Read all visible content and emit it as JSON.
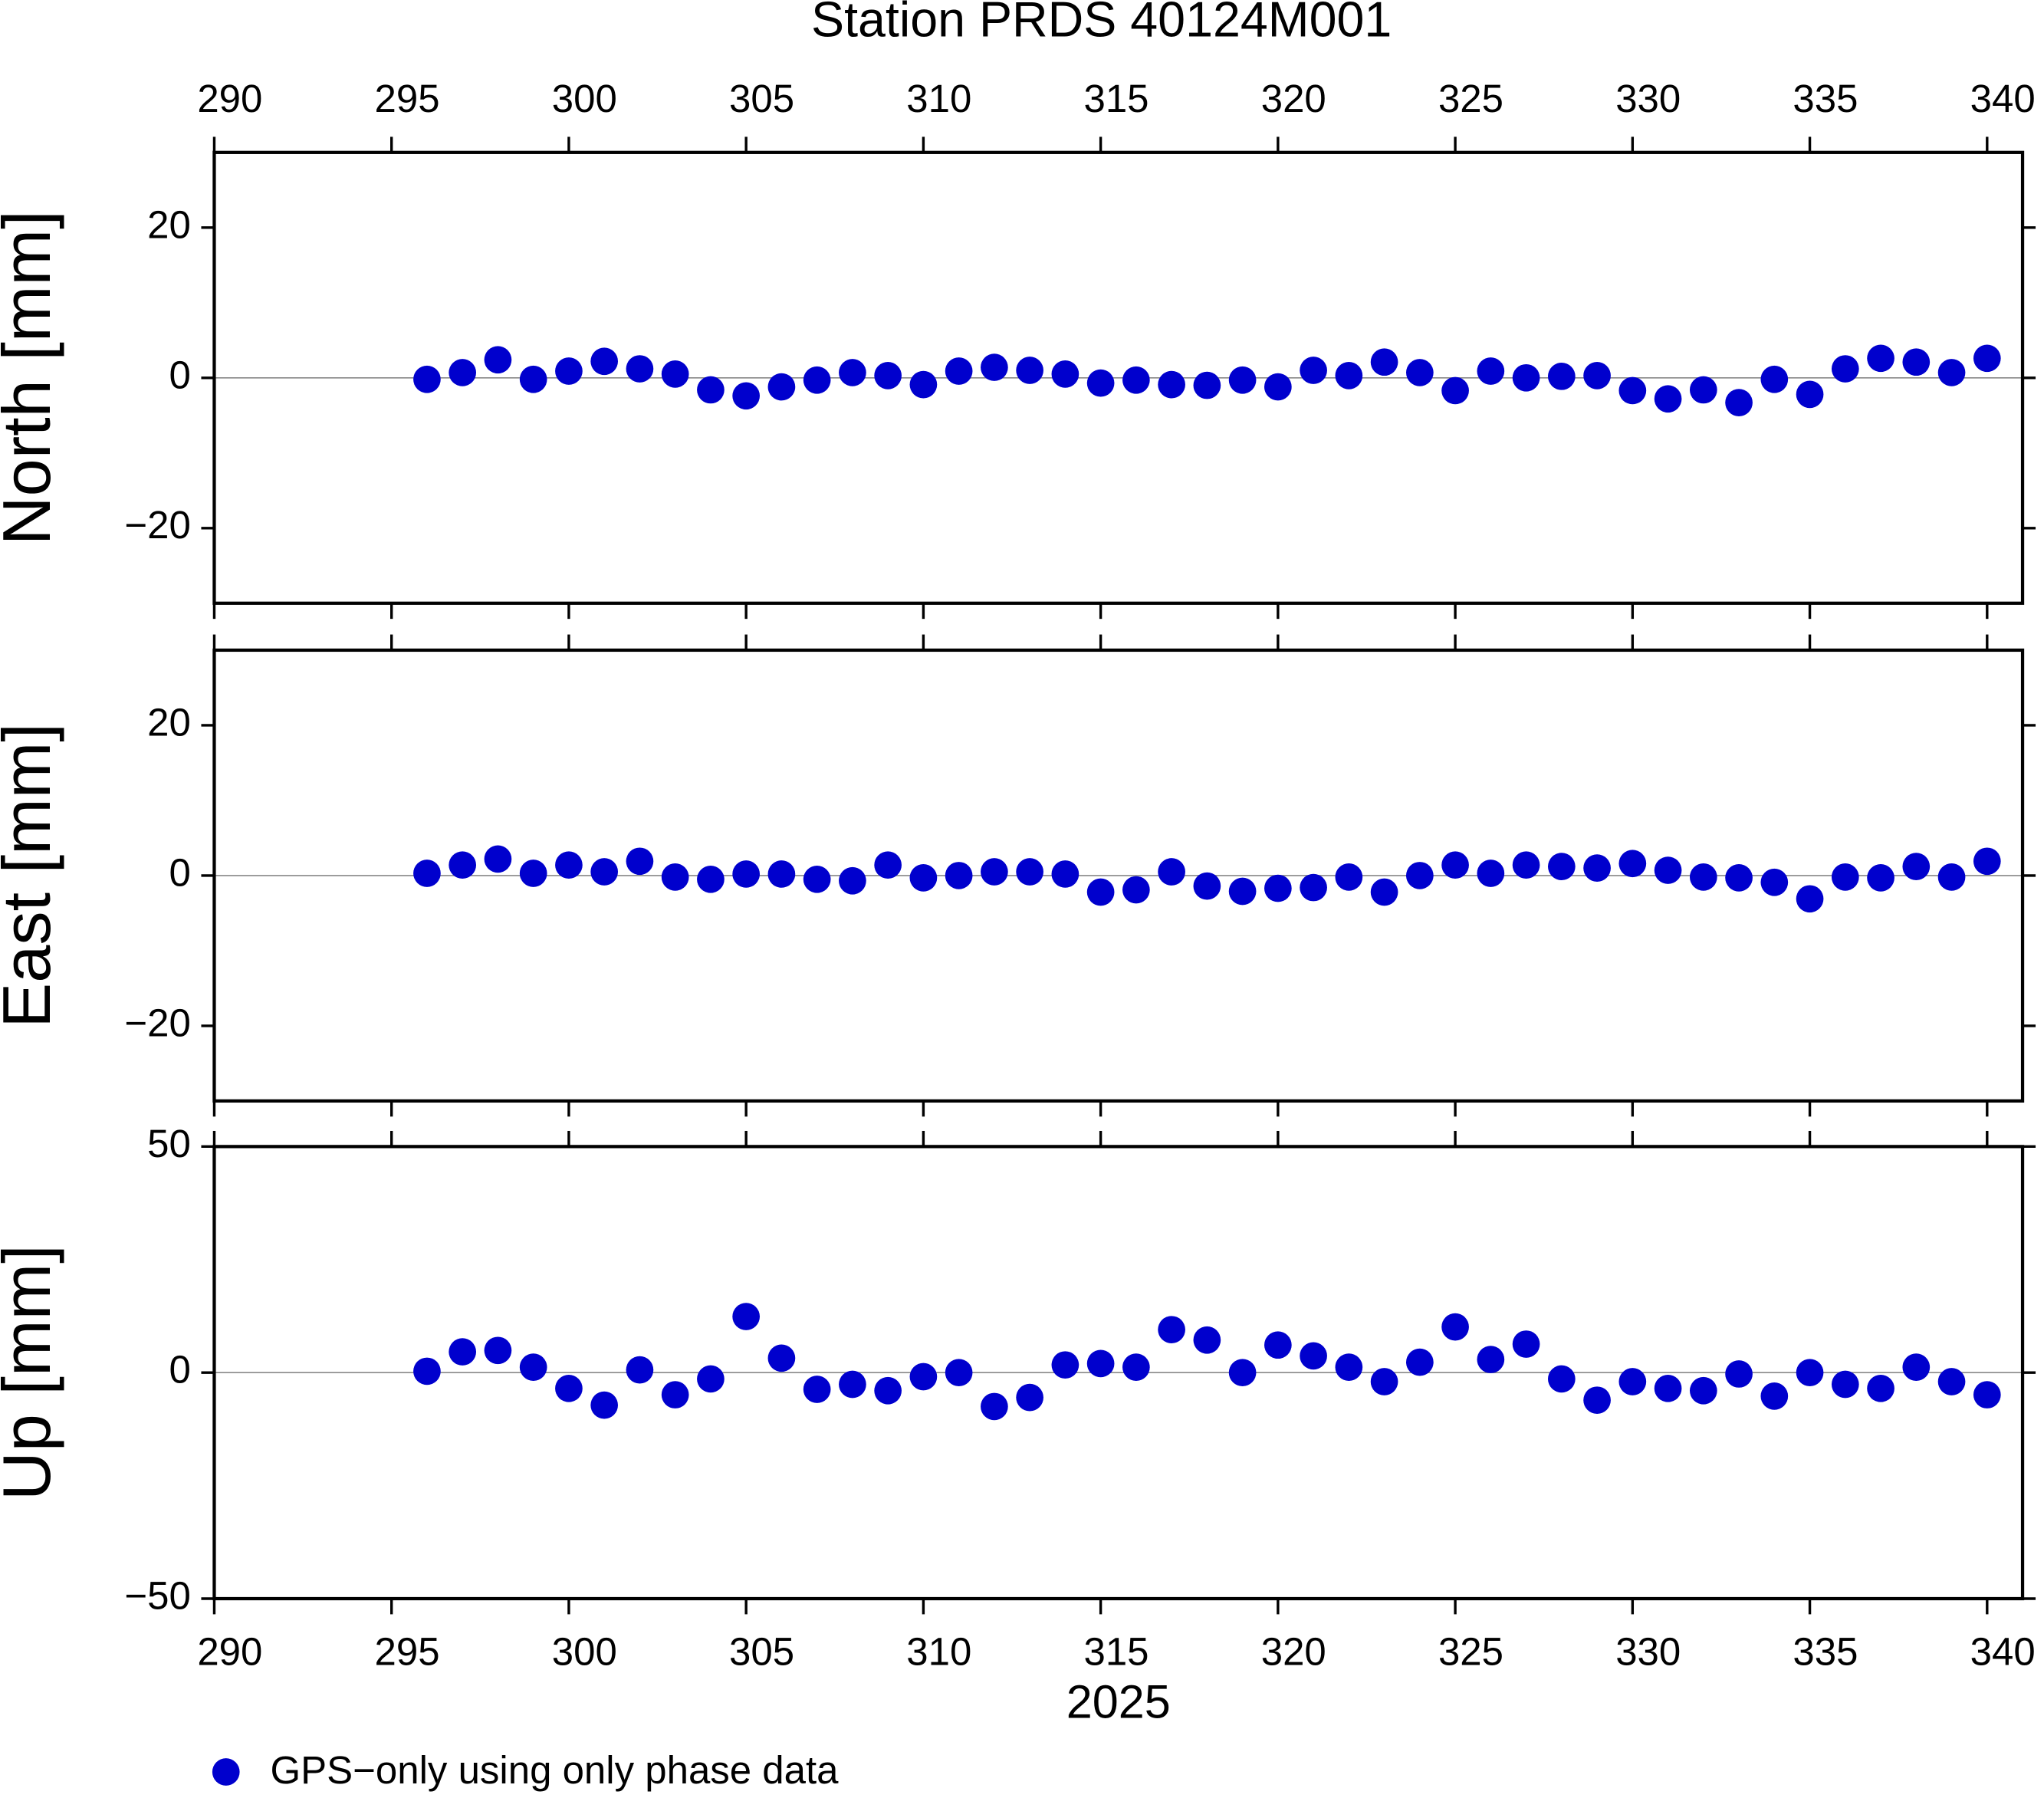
{
  "chart_data": [
    {
      "type": "scatter",
      "title": "Station PRDS 40124M001",
      "ylabel": "North [mm]",
      "x": [
        296,
        297,
        298,
        299,
        300,
        301,
        302,
        303,
        304,
        305,
        306,
        307,
        308,
        309,
        310,
        311,
        312,
        313,
        314,
        315,
        316,
        317,
        318,
        319,
        320,
        321,
        322,
        323,
        324,
        325,
        326,
        327,
        328,
        329,
        330,
        331,
        332,
        333,
        334,
        335,
        336,
        337,
        338,
        339,
        340
      ],
      "series": [
        {
          "color": "#0000cd",
          "values": [
            -0.2,
            0.7,
            2.4,
            -0.2,
            0.9,
            2.2,
            1.2,
            0.5,
            -1.6,
            -2.4,
            -1.2,
            -0.3,
            0.7,
            0.3,
            -0.9,
            0.9,
            1.4,
            1.0,
            0.5,
            -0.7,
            -0.3,
            -0.9,
            -1.0,
            -0.3,
            -1.2,
            1.0,
            0.3,
            2.1,
            0.7,
            -1.7,
            0.9,
            0,
            0.2,
            0.3,
            -1.7,
            -2.8,
            -1.6,
            -3.3,
            -0.2,
            -2.2,
            1.2,
            2.6,
            2.1,
            0.7,
            2.6
          ]
        }
      ],
      "xlim": [
        290,
        341
      ],
      "xticks": [
        290,
        295,
        300,
        305,
        310,
        315,
        320,
        325,
        330,
        335,
        340
      ],
      "ylim": [
        -30,
        30
      ],
      "yticks": [
        {
          "value": -20,
          "label": "−20"
        },
        0,
        20
      ]
    },
    {
      "type": "scatter",
      "ylabel": "East [mm]",
      "x": [
        296,
        297,
        298,
        299,
        300,
        301,
        302,
        303,
        304,
        305,
        306,
        307,
        308,
        309,
        310,
        311,
        312,
        313,
        314,
        315,
        316,
        317,
        318,
        319,
        320,
        321,
        322,
        323,
        324,
        325,
        326,
        327,
        328,
        329,
        330,
        331,
        332,
        333,
        334,
        335,
        336,
        337,
        338,
        339,
        340
      ],
      "series": [
        {
          "color": "#0000cd",
          "values": [
            0.3,
            1.4,
            2.2,
            0.3,
            1.4,
            0.5,
            1.9,
            -0.2,
            -0.5,
            0.2,
            0.2,
            -0.5,
            -0.7,
            1.4,
            -0.3,
            0,
            0.5,
            0.5,
            0.2,
            -2.2,
            -1.9,
            0.5,
            -1.4,
            -2.1,
            -1.7,
            -1.6,
            -0.2,
            -2.2,
            0,
            1.4,
            0.3,
            1.4,
            1.2,
            1.0,
            1.6,
            0.7,
            -0.2,
            -0.3,
            -0.9,
            -3.1,
            -0.2,
            -0.3,
            1.2,
            -0.2,
            1.9
          ]
        }
      ],
      "xlim": [
        290,
        341
      ],
      "xticks": [
        290,
        295,
        300,
        305,
        310,
        315,
        320,
        325,
        330,
        335,
        340
      ],
      "ylim": [
        -30,
        30
      ],
      "yticks": [
        {
          "value": -20,
          "label": "−20"
        },
        0,
        20
      ]
    },
    {
      "type": "scatter",
      "ylabel": "Up [mm]",
      "xlabel": "2025",
      "x": [
        296,
        297,
        298,
        299,
        300,
        301,
        302,
        303,
        304,
        305,
        306,
        307,
        308,
        309,
        310,
        311,
        312,
        313,
        314,
        315,
        316,
        317,
        318,
        319,
        320,
        321,
        322,
        323,
        324,
        325,
        326,
        327,
        328,
        329,
        330,
        331,
        332,
        333,
        334,
        335,
        336,
        337,
        338,
        339,
        340
      ],
      "series": [
        {
          "name": "GPS−only using only phase data",
          "color": "#0000cd",
          "values": [
            0.3,
            4.6,
            4.9,
            1.2,
            -3.5,
            -7.2,
            0.6,
            -4.9,
            -1.4,
            12.4,
            3.2,
            -3.7,
            -2.6,
            -4.0,
            -0.9,
            0,
            -7.5,
            -5.5,
            1.7,
            2.0,
            1.2,
            9.5,
            7.2,
            0,
            6.1,
            3.7,
            1.2,
            -2.0,
            2.3,
            10.1,
            2.9,
            6.3,
            -1.4,
            -6.1,
            -2.0,
            -3.5,
            -4.0,
            -0.3,
            -5.2,
            0,
            -2.6,
            -3.5,
            1.2,
            -2.0,
            -4.9
          ]
        }
      ],
      "xlim": [
        290,
        341
      ],
      "xticks": [
        290,
        295,
        300,
        305,
        310,
        315,
        320,
        325,
        330,
        335,
        340
      ],
      "ylim": [
        -50,
        50
      ],
      "yticks": [
        {
          "value": -50,
          "label": "−50"
        },
        0,
        50
      ]
    }
  ]
}
